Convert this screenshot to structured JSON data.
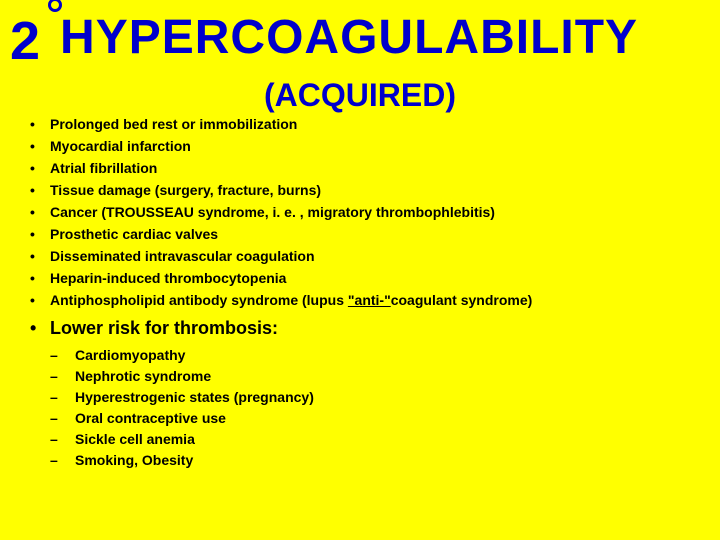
{
  "title": {
    "number": "2",
    "main": "HYPERCOAGULABILITY",
    "subtitle": "(ACQUIRED)"
  },
  "bullets": [
    "Prolonged bed rest or immobilization",
    "Myocardial infarction",
    "Atrial fibrillation",
    "Tissue damage (surgery, fracture, burns)",
    "Cancer (TROUSSEAU syndrome, i. e. , migratory thrombophlebitis)",
    "Prosthetic cardiac valves",
    "Disseminated intravascular  coagulation",
    "Heparin-induced thrombocytopenia"
  ],
  "special_bullet": {
    "prefix": "Antiphospholipid antibody syndrome (lupus ",
    "underlined": "\"anti-\"",
    "suffix": "coagulant syndrome)"
  },
  "lower_risk_header": "Lower risk for thrombosis:",
  "sub_bullets": [
    "Cardiomyopathy",
    "Nephrotic syndrome",
    "Hyperestrogenic states (pregnancy)",
    "Oral contraceptive use",
    "Sickle cell anemia",
    "Smoking, Obesity"
  ],
  "colors": {
    "background": "#ffff00",
    "title": "#0000cc",
    "text": "#000000"
  },
  "fonts": {
    "title_number_size": 54,
    "title_main_size": 48,
    "subtitle_size": 32,
    "bullet_size": 14,
    "lower_risk_size": 18,
    "sub_bullet_size": 14
  }
}
